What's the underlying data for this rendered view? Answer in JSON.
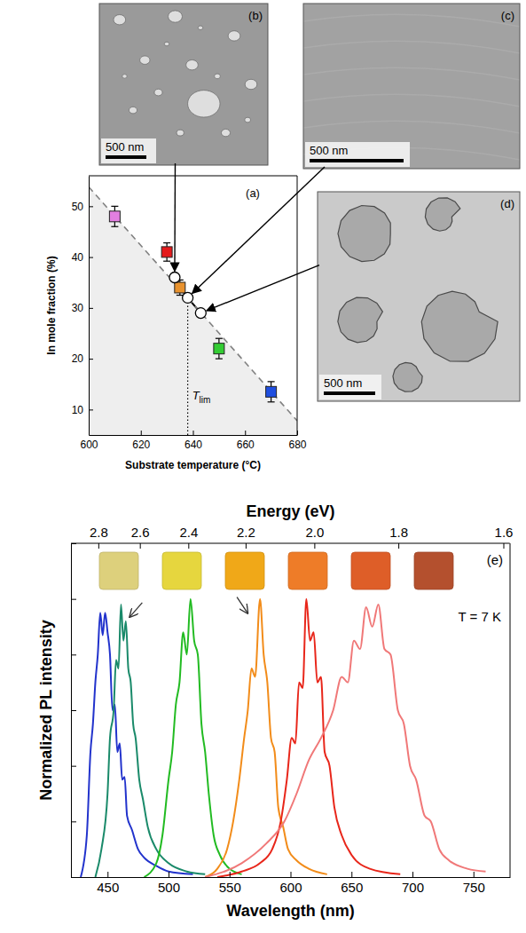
{
  "chart_data": [
    {
      "type": "scatter",
      "title": "(a)",
      "xlabel": "Substrate temperature (°C)",
      "ylabel": "In mole fraction (%)",
      "xlim": [
        600,
        680
      ],
      "xticks": [
        600,
        620,
        640,
        660,
        680
      ],
      "ylim": [
        5,
        56
      ],
      "yticks": [
        10,
        20,
        30,
        40,
        50
      ],
      "series": [
        {
          "type": "scatter",
          "marker": "square",
          "x": [
            610,
            630,
            635,
            650,
            670
          ],
          "values": [
            48,
            41,
            34,
            22,
            13.5
          ],
          "errors": [
            2,
            1.8,
            1.5,
            2,
            2
          ],
          "colors": [
            "#e27fe0",
            "#e41a1c",
            "#e8922e",
            "#33cc33",
            "#1f4fe0"
          ]
        },
        {
          "type": "line",
          "marker": "circle",
          "line_style": "solid",
          "color": "#000000",
          "x": [
            633,
            638,
            643
          ],
          "values": [
            36,
            32,
            29
          ]
        },
        {
          "type": "line",
          "line_style": "dashed",
          "color": "#808080",
          "x": [
            600,
            680
          ],
          "values": [
            53.8,
            7.8
          ]
        }
      ],
      "annotations": [
        {
          "text": "T",
          "subscript": "lim",
          "x": 638,
          "y": 32
        }
      ]
    },
    {
      "type": "line",
      "title": "(e)",
      "xlabel": "Wavelength (nm)",
      "ylabel": "Normalized PL intensity",
      "x2label": "Energy (eV)",
      "xlim": [
        420,
        780
      ],
      "xticks": [
        450,
        500,
        550,
        600,
        650,
        700,
        750
      ],
      "x2lim": [
        2.952,
        1.59
      ],
      "x2ticks": [
        2.8,
        2.6,
        2.4,
        2.2,
        {
          "value": 2,
          "label": "2.0"
        },
        1.8,
        1.6
      ],
      "ylim": [
        0,
        1.2
      ],
      "yticks": [
        0,
        0.2,
        0.4,
        0.6,
        0.8,
        1,
        1.2
      ],
      "tick_labels": "x",
      "annotations": [
        {
          "text": "T = 7 K"
        }
      ],
      "series": [
        {
          "color": "#2233cc",
          "x": [
            428,
            433,
            436,
            438,
            440,
            442,
            444,
            446,
            448,
            450,
            452,
            454,
            456,
            458,
            460,
            462,
            464,
            466,
            470,
            475,
            480,
            490,
            500,
            520
          ],
          "values": [
            0,
            0.15,
            0.45,
            0.55,
            0.7,
            0.8,
            0.95,
            0.87,
            0.95,
            0.88,
            0.8,
            0.6,
            0.62,
            0.45,
            0.48,
            0.35,
            0.36,
            0.22,
            0.17,
            0.1,
            0.07,
            0.04,
            0.02,
            0.01
          ]
        },
        {
          "color": "#1a8a6a",
          "x": [
            440,
            445,
            450,
            452,
            455,
            457,
            459,
            461,
            463,
            465,
            467,
            469,
            471,
            473,
            476,
            479,
            483,
            490,
            500,
            515,
            530
          ],
          "values": [
            0,
            0.1,
            0.3,
            0.5,
            0.6,
            0.78,
            0.75,
            0.98,
            0.85,
            0.92,
            0.75,
            0.7,
            0.55,
            0.5,
            0.35,
            0.28,
            0.18,
            0.1,
            0.05,
            0.02,
            0.01
          ]
        },
        {
          "color": "#22bb22",
          "x": [
            480,
            490,
            495,
            500,
            503,
            506,
            509,
            512,
            515,
            518,
            521,
            524,
            527,
            530,
            533,
            537,
            542,
            550,
            560
          ],
          "values": [
            0,
            0.05,
            0.15,
            0.35,
            0.45,
            0.62,
            0.7,
            0.88,
            0.8,
            1,
            0.85,
            0.8,
            0.55,
            0.45,
            0.3,
            0.15,
            0.08,
            0.03,
            0.01
          ]
        },
        {
          "color": "#f28c1a",
          "x": [
            530,
            540,
            548,
            553,
            558,
            562,
            565,
            568,
            571,
            575,
            578,
            581,
            584,
            587,
            590,
            594,
            598,
            605,
            615,
            630
          ],
          "values": [
            0,
            0.03,
            0.1,
            0.2,
            0.35,
            0.5,
            0.6,
            0.75,
            0.72,
            1,
            0.8,
            0.7,
            0.5,
            0.45,
            0.25,
            0.18,
            0.1,
            0.06,
            0.03,
            0.01
          ]
        },
        {
          "color": "#e8261a",
          "x": [
            540,
            560,
            575,
            585,
            592,
            597,
            601,
            604,
            607,
            610,
            613,
            616,
            619,
            622,
            625,
            628,
            632,
            636,
            642,
            650,
            665,
            690
          ],
          "values": [
            0,
            0.02,
            0.05,
            0.1,
            0.2,
            0.35,
            0.5,
            0.48,
            0.7,
            0.68,
            1,
            0.85,
            0.88,
            0.7,
            0.72,
            0.45,
            0.4,
            0.25,
            0.15,
            0.08,
            0.03,
            0.01
          ]
        },
        {
          "color": "#f07878",
          "x": [
            530,
            560,
            580,
            595,
            605,
            615,
            625,
            635,
            642,
            647,
            652,
            657,
            662,
            667,
            672,
            677,
            682,
            688,
            693,
            698,
            703,
            710,
            715,
            722,
            730,
            745,
            760
          ],
          "values": [
            0,
            0.05,
            0.12,
            0.2,
            0.3,
            0.42,
            0.5,
            0.6,
            0.72,
            0.7,
            0.85,
            0.82,
            0.97,
            0.9,
            0.98,
            0.82,
            0.8,
            0.6,
            0.55,
            0.4,
            0.35,
            0.22,
            0.2,
            0.1,
            0.06,
            0.03,
            0.02
          ]
        }
      ]
    }
  ],
  "micrographs": [
    {
      "label": "(b)",
      "scale_bar": "500 nm"
    },
    {
      "label": "(c)",
      "scale_bar": "500 nm"
    },
    {
      "label": "(d)",
      "scale_bar": "500 nm"
    }
  ],
  "photos": {
    "colors": [
      "#ddd07c",
      "#e6d63e",
      "#f0a818",
      "#ee7c28",
      "#de5e28",
      "#b4502e"
    ]
  }
}
